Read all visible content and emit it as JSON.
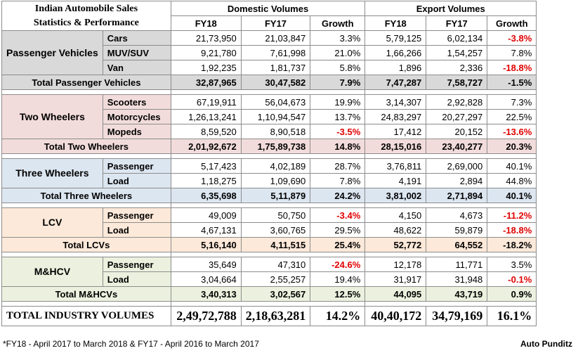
{
  "title_line1": "Indian Automobile Sales",
  "title_line2": "Statistics & Performance",
  "domestic_header": "Domestic Volumes",
  "export_header": "Export Volumes",
  "col_fy18": "FY18",
  "col_fy17": "FY17",
  "col_growth": "Growth",
  "groups": [
    {
      "name": "Passenger Vehicles",
      "rows": [
        {
          "label": "Cars",
          "d18": "21,73,950",
          "d17": "21,03,847",
          "dg": "3.3%",
          "e18": "5,79,125",
          "e17": "6,02,134",
          "eg": "-3.8%"
        },
        {
          "label": "MUV/SUV",
          "d18": "9,21,780",
          "d17": "7,61,998",
          "dg": "21.0%",
          "e18": "1,66,266",
          "e17": "1,54,257",
          "eg": "7.8%"
        },
        {
          "label": "Van",
          "d18": "1,92,235",
          "d17": "1,81,737",
          "dg": "5.8%",
          "e18": "1,896",
          "e17": "2,336",
          "eg": "-18.8%"
        }
      ],
      "total": {
        "label": "Total Passenger Vehicles",
        "d18": "32,87,965",
        "d17": "30,47,582",
        "dg": "7.9%",
        "e18": "7,47,287",
        "e17": "7,58,727",
        "eg": "-1.5%"
      }
    },
    {
      "name": "Two Wheelers",
      "rows": [
        {
          "label": "Scooters",
          "d18": "67,19,911",
          "d17": "56,04,673",
          "dg": "19.9%",
          "e18": "3,14,307",
          "e17": "2,92,828",
          "eg": "7.3%"
        },
        {
          "label": "Motorcycles",
          "d18": "1,26,13,241",
          "d17": "1,10,94,547",
          "dg": "13.7%",
          "e18": "24,83,297",
          "e17": "20,27,297",
          "eg": "22.5%"
        },
        {
          "label": "Mopeds",
          "d18": "8,59,520",
          "d17": "8,90,518",
          "dg": "-3.5%",
          "e18": "17,412",
          "e17": "20,152",
          "eg": "-13.6%"
        }
      ],
      "total": {
        "label": "Total Two Wheelers",
        "d18": "2,01,92,672",
        "d17": "1,75,89,738",
        "dg": "14.8%",
        "e18": "28,15,016",
        "e17": "23,40,277",
        "eg": "20.3%"
      }
    },
    {
      "name": "Three Wheelers",
      "rows": [
        {
          "label": "Passenger",
          "d18": "5,17,423",
          "d17": "4,02,189",
          "dg": "28.7%",
          "e18": "3,76,811",
          "e17": "2,69,000",
          "eg": "40.1%"
        },
        {
          "label": "Load",
          "d18": "1,18,275",
          "d17": "1,09,690",
          "dg": "7.8%",
          "e18": "4,191",
          "e17": "2,894",
          "eg": "44.8%"
        }
      ],
      "total": {
        "label": "Total Three Wheelers",
        "d18": "6,35,698",
        "d17": "5,11,879",
        "dg": "24.2%",
        "e18": "3,81,002",
        "e17": "2,71,894",
        "eg": "40.1%"
      }
    },
    {
      "name": "LCV",
      "rows": [
        {
          "label": "Passenger",
          "d18": "49,009",
          "d17": "50,750",
          "dg": "-3.4%",
          "e18": "4,150",
          "e17": "4,673",
          "eg": "-11.2%"
        },
        {
          "label": "Load",
          "d18": "4,67,131",
          "d17": "3,60,765",
          "dg": "29.5%",
          "e18": "48,622",
          "e17": "59,879",
          "eg": "-18.8%"
        }
      ],
      "total": {
        "label": "Total LCVs",
        "d18": "5,16,140",
        "d17": "4,11,515",
        "dg": "25.4%",
        "e18": "52,772",
        "e17": "64,552",
        "eg": "-18.2%"
      }
    },
    {
      "name": "M&HCV",
      "rows": [
        {
          "label": "Passenger",
          "d18": "35,649",
          "d17": "47,310",
          "dg": "-24.6%",
          "e18": "12,178",
          "e17": "11,771",
          "eg": "3.5%"
        },
        {
          "label": "Load",
          "d18": "3,04,664",
          "d17": "2,55,257",
          "dg": "19.4%",
          "e18": "31,917",
          "e17": "31,948",
          "eg": "-0.1%"
        }
      ],
      "total": {
        "label": "Total M&HCVs",
        "d18": "3,40,313",
        "d17": "3,02,567",
        "dg": "12.5%",
        "e18": "44,095",
        "e17": "43,719",
        "eg": "0.9%"
      }
    }
  ],
  "grand_total": {
    "label": "TOTAL INDUSTRY VOLUMES",
    "d18": "2,49,72,788",
    "d17": "2,18,63,281",
    "dg": "14.2%",
    "e18": "40,40,172",
    "e17": "34,79,169",
    "eg": "16.1%"
  },
  "footnote": "*FY18 - April 2017 to March 2018 & FY17 - April 2016 to March 2017",
  "brand": "Auto Punditz",
  "colors": {
    "pv": "#d9d9d9",
    "two_wheelers": "#f2dcdb",
    "three_wheelers": "#dce6f1",
    "lcv": "#fde9d9",
    "mhcv": "#ebf1de",
    "negative": "#e00000"
  }
}
